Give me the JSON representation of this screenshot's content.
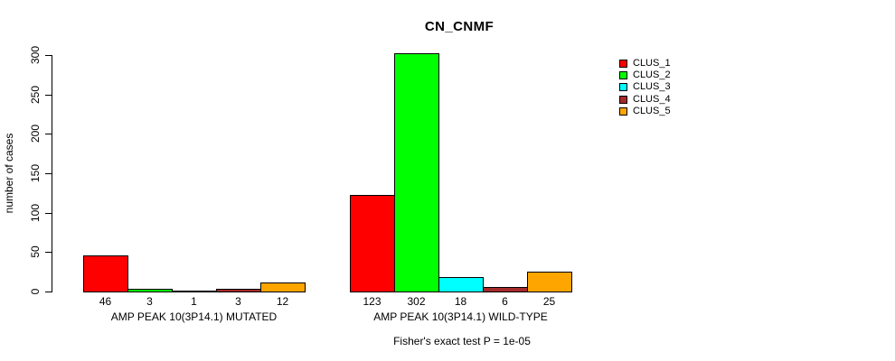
{
  "window": {
    "background": "#ffffff",
    "text_color": "#000000"
  },
  "chart_data": {
    "type": "bar",
    "title": "CN_CNMF",
    "ylabel": "number of cases",
    "xlabel": "",
    "categories": [
      "AMP PEAK 10(3P14.1) MUTATED",
      "AMP PEAK 10(3P14.1) WILD-TYPE"
    ],
    "series": [
      {
        "name": "CLUS_1",
        "color": "#ff0000",
        "values": [
          46,
          123
        ]
      },
      {
        "name": "CLUS_2",
        "color": "#00ff00",
        "values": [
          3,
          302
        ]
      },
      {
        "name": "CLUS_3",
        "color": "#00ffff",
        "values": [
          1,
          18
        ]
      },
      {
        "name": "CLUS_4",
        "color": "#a52a2a",
        "values": [
          3,
          6
        ]
      },
      {
        "name": "CLUS_5",
        "color": "#ffa500",
        "values": [
          12,
          25
        ]
      }
    ],
    "yticks": [
      0,
      50,
      100,
      150,
      200,
      250,
      300
    ],
    "ylim": [
      0,
      300
    ],
    "grid": false,
    "legend_position": "right",
    "annotation": "Fisher's exact test P = 1e-05"
  }
}
